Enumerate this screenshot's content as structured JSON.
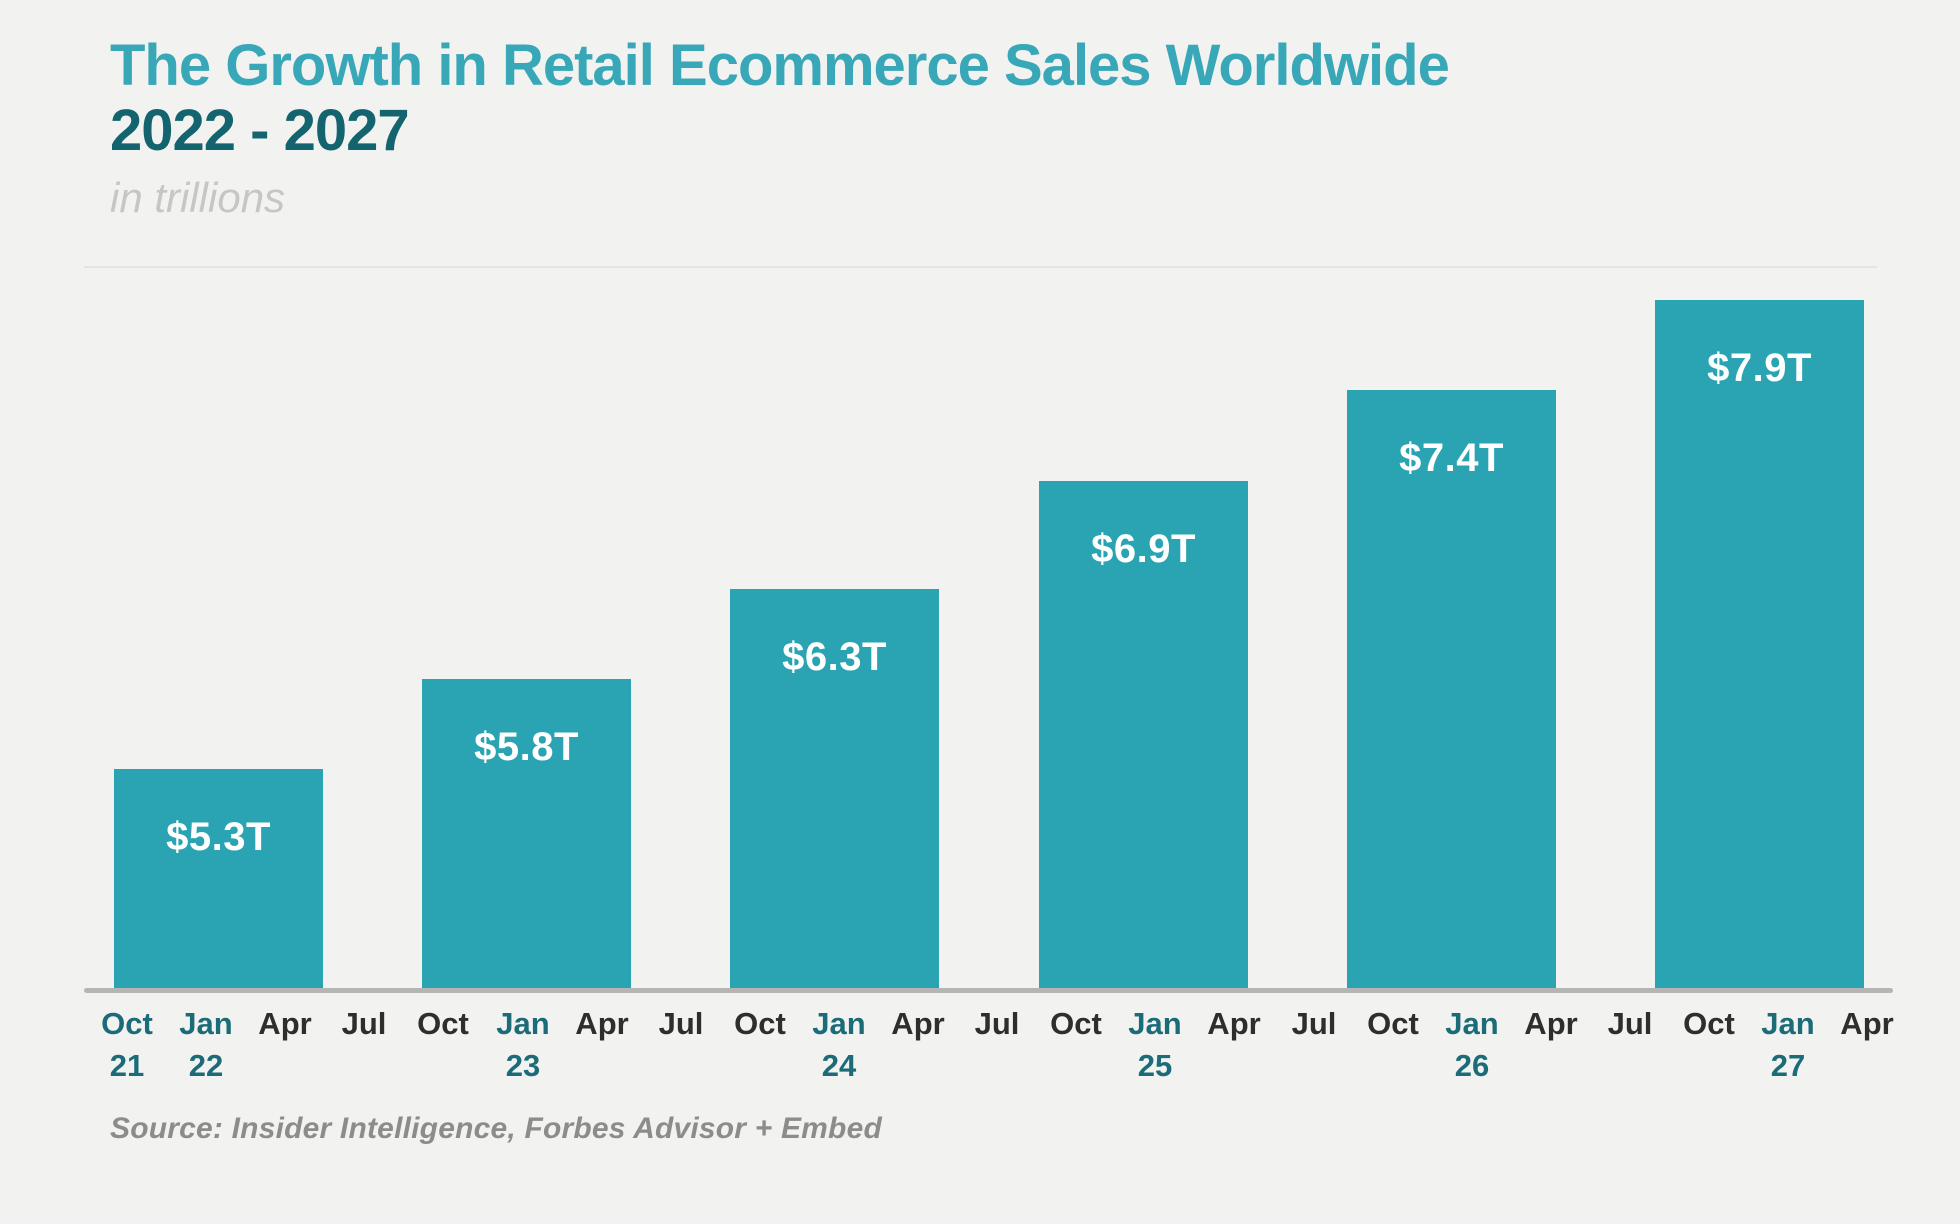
{
  "title": {
    "line1": "The Growth in Retail Ecommerce Sales Worldwide",
    "line2": "2022 - 2027",
    "subtitle": "in trillions"
  },
  "source": "Source: Insider Intelligence, Forbes Advisor + Embed",
  "colors": {
    "background": "#f2f2f0",
    "bar": "#2aa4b2",
    "title_light_teal": "#38a7b7",
    "title_dark_teal": "#14646f",
    "axis_highlight_teal": "#1b6b78",
    "axis_dark": "#2e2e2c",
    "subtitle_gray": "#c6c6c4",
    "source_gray": "#8c8c8a",
    "baseline_gray": "#b5b5b3",
    "value_label": "#ffffff"
  },
  "chart_data": {
    "type": "bar",
    "title": "The Growth in Retail Ecommerce Sales Worldwide 2022 - 2027",
    "units": "USD trillions",
    "subtitle": "in trillions",
    "categories": [
      "Jan 22",
      "Jan 23",
      "Jan 24",
      "Jan 25",
      "Jan 26",
      "Jan 27"
    ],
    "values": [
      5.3,
      5.8,
      6.3,
      6.9,
      7.4,
      7.9
    ],
    "bar_labels": [
      "$5.3T",
      "$5.8T",
      "$6.3T",
      "$6.9T",
      "$7.4T",
      "$7.9T"
    ],
    "ylim": [
      4.1,
      8.0
    ],
    "grid": false,
    "legend": false,
    "x_ticks": [
      {
        "month": "Oct",
        "year": "21",
        "highlight": true
      },
      {
        "month": "Jan",
        "year": "22",
        "highlight": true
      },
      {
        "month": "Apr",
        "year": "",
        "highlight": false
      },
      {
        "month": "Jul",
        "year": "",
        "highlight": false
      },
      {
        "month": "Oct",
        "year": "",
        "highlight": false
      },
      {
        "month": "Jan",
        "year": "23",
        "highlight": true
      },
      {
        "month": "Apr",
        "year": "",
        "highlight": false
      },
      {
        "month": "Jul",
        "year": "",
        "highlight": false
      },
      {
        "month": "Oct",
        "year": "",
        "highlight": false
      },
      {
        "month": "Jan",
        "year": "24",
        "highlight": true
      },
      {
        "month": "Apr",
        "year": "",
        "highlight": false
      },
      {
        "month": "Jul",
        "year": "",
        "highlight": false
      },
      {
        "month": "Oct",
        "year": "",
        "highlight": false
      },
      {
        "month": "Jan",
        "year": "25",
        "highlight": true
      },
      {
        "month": "Apr",
        "year": "",
        "highlight": false
      },
      {
        "month": "Jul",
        "year": "",
        "highlight": false
      },
      {
        "month": "Oct",
        "year": "",
        "highlight": false
      },
      {
        "month": "Jan",
        "year": "26",
        "highlight": true
      },
      {
        "month": "Apr",
        "year": "",
        "highlight": false
      },
      {
        "month": "Jul",
        "year": "",
        "highlight": false
      },
      {
        "month": "Oct",
        "year": "",
        "highlight": false
      },
      {
        "month": "Jan",
        "year": "27",
        "highlight": true
      },
      {
        "month": "Apr",
        "year": "",
        "highlight": false
      }
    ]
  }
}
